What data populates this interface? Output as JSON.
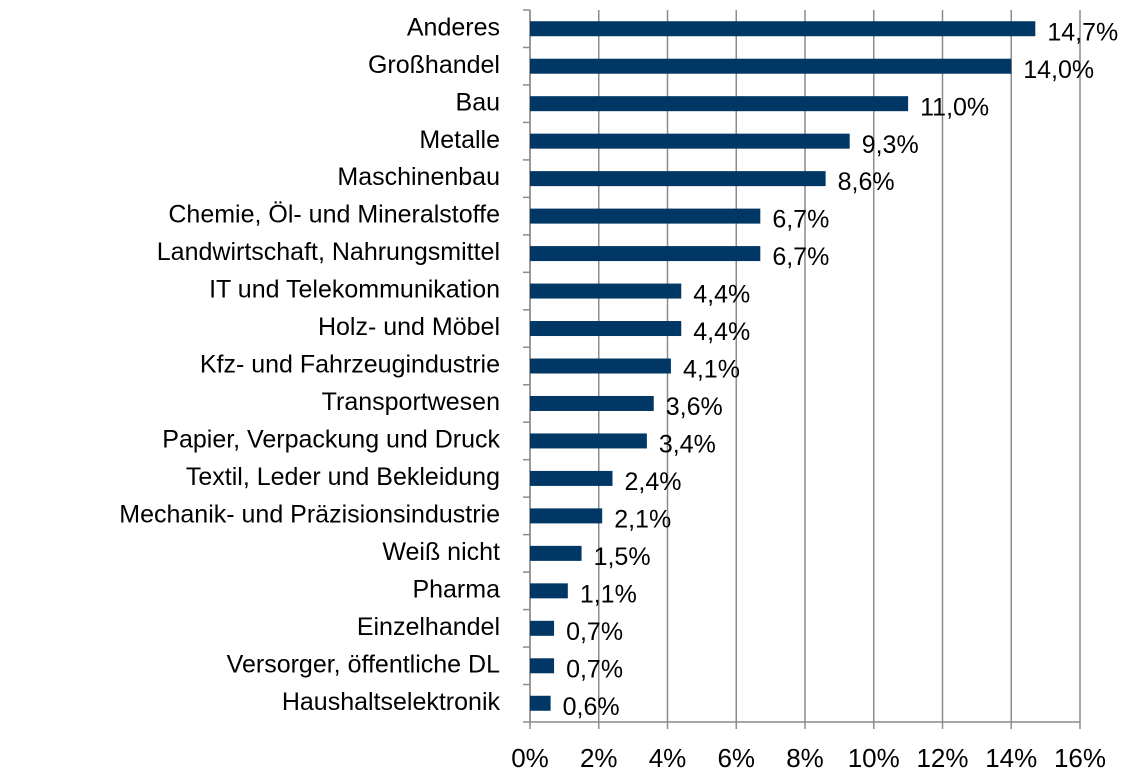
{
  "chart_data": {
    "type": "barh",
    "categories": [
      "Anderes",
      "Großhandel",
      "Bau",
      "Metalle",
      "Maschinenbau",
      "Chemie, Öl- und Mineralstoffe",
      "Landwirtschaft, Nahrungsmittel",
      "IT und Telekommunikation",
      "Holz- und Möbel",
      "Kfz- und Fahrzeugindustrie",
      "Transportwesen",
      "Papier, Verpackung und Druck",
      "Textil, Leder und Bekleidung",
      "Mechanik- und Präzisionsindustrie",
      "Weiß nicht",
      "Pharma",
      "Einzelhandel",
      "Versorger, öffentliche DL",
      "Haushaltselektronik"
    ],
    "values": [
      14.7,
      14.0,
      11.0,
      9.3,
      8.6,
      6.7,
      6.7,
      4.4,
      4.4,
      4.1,
      3.6,
      3.4,
      2.4,
      2.1,
      1.5,
      1.1,
      0.7,
      0.7,
      0.6
    ],
    "value_labels": [
      "14,7%",
      "14,0%",
      "11,0%",
      "9,3%",
      "8,6%",
      "6,7%",
      "6,7%",
      "4,4%",
      "4,4%",
      "4,1%",
      "3,6%",
      "3,4%",
      "2,4%",
      "2,1%",
      "1,5%",
      "1,1%",
      "0,7%",
      "0,7%",
      "0,6%"
    ],
    "color": "#003764",
    "xlim": [
      0,
      16
    ],
    "xticks": [
      {
        "value": 0,
        "label": "0%"
      },
      {
        "value": 2,
        "label": "2%"
      },
      {
        "value": 4,
        "label": "4%"
      },
      {
        "value": 6,
        "label": "6%"
      },
      {
        "value": 8,
        "label": "8%"
      },
      {
        "value": 10,
        "label": "10%"
      },
      {
        "value": 12,
        "label": "12%"
      },
      {
        "value": 14,
        "label": "14%"
      },
      {
        "value": 16,
        "label": "16%"
      }
    ],
    "grid": true
  }
}
